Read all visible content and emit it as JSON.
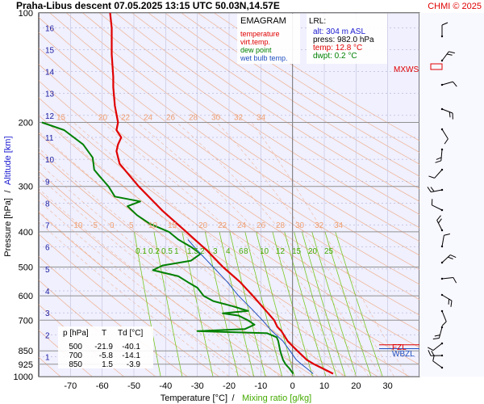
{
  "header": {
    "title": "Praha-Libus   descent   07.05.2025 13:15 UTC   50.03N,14.57E",
    "copyright": "CHMI © 2025"
  },
  "axes": {
    "x_label_temp": "Temperature [°C]",
    "x_label_sep": "/",
    "x_label_mix": "Mixing ratio [g/kg]",
    "y_label_pressure": "Pressure [hPa]",
    "y_label_sep": "/",
    "y_label_alt": "Altitude [km]"
  },
  "legend": {
    "title": "EMAGRAM",
    "items": [
      {
        "label": "temperature",
        "color": "#e00000"
      },
      {
        "label": "virt.temp.",
        "color": "#e00000"
      },
      {
        "label": "dew point",
        "color": "#008000"
      },
      {
        "label": "wet bulb temp.",
        "color": "#2050c0"
      }
    ]
  },
  "station_box": {
    "title": "LRL:",
    "lines": [
      {
        "text": "alt: 304 m ASL",
        "color": "#1a1ad0"
      },
      {
        "text": "press: 982.0 hPa",
        "color": "#000000"
      },
      {
        "text": "temp: 12.8 °C",
        "color": "#e00000"
      },
      {
        "text": "dwpt: 0.2 °C",
        "color": "#008000"
      }
    ]
  },
  "level_table": {
    "header": [
      "p [hPa]",
      "T",
      "Td [°C]"
    ],
    "rows": [
      [
        "500",
        "-21.9",
        "-40.1"
      ],
      [
        "700",
        "-5.8",
        "-14.1"
      ],
      [
        "850",
        "1.5",
        "-3.9"
      ]
    ]
  },
  "markers": {
    "mxws": "MXWS",
    "fzl": "FZL",
    "wbzl": "WBZL"
  },
  "colors": {
    "temperature": "#e00000",
    "dewpoint": "#008000",
    "wetbulb": "#2050c0",
    "isotherm": "#f0a070",
    "mixing_ratio": "#7ac820",
    "plot_bg": "#f0f0ff"
  },
  "chart_data": {
    "type": "line",
    "x_axis": "temperature_C",
    "y_axis": "pressure_hPa",
    "y_scale": "log",
    "xlim": [
      -80,
      40
    ],
    "ylim": [
      1000,
      100
    ],
    "x_ticks": [
      -70,
      -60,
      -50,
      -40,
      -30,
      -20,
      -10,
      0,
      10,
      20,
      30
    ],
    "y_ticks": [
      100,
      200,
      300,
      400,
      500,
      600,
      700,
      850,
      925,
      1000
    ],
    "altitude_km_labels": [
      1,
      2,
      3,
      4,
      5,
      6,
      7,
      8,
      9,
      10,
      11,
      12,
      13,
      14,
      15,
      16
    ],
    "isotherm_labels_upper": [
      15,
      20,
      22,
      24,
      26,
      28,
      30,
      32,
      34
    ],
    "isotherm_labels_lower": [
      -10,
      -5,
      0,
      5,
      10,
      15,
      20,
      22,
      24,
      26,
      28,
      30,
      32,
      34
    ],
    "mixing_ratio_labels": [
      "0.1",
      "0.2",
      "0.5",
      "1",
      "1.5",
      "2",
      "3",
      "4",
      "6",
      "8",
      "10",
      "12",
      "15",
      "20",
      "25"
    ],
    "series": [
      {
        "name": "temperature",
        "points": [
          [
            982,
            12.8
          ],
          [
            950,
            9.5
          ],
          [
            925,
            6.8
          ],
          [
            900,
            4.5
          ],
          [
            850,
            1.5
          ],
          [
            800,
            -1.5
          ],
          [
            750,
            -3.5
          ],
          [
            730,
            -4.8
          ],
          [
            700,
            -5.8
          ],
          [
            650,
            -9.0
          ],
          [
            600,
            -12.5
          ],
          [
            550,
            -16.5
          ],
          [
            500,
            -21.9
          ],
          [
            450,
            -27.0
          ],
          [
            400,
            -33.5
          ],
          [
            350,
            -41.0
          ],
          [
            300,
            -48.5
          ],
          [
            260,
            -54.5
          ],
          [
            240,
            -55.5
          ],
          [
            230,
            -55.0
          ],
          [
            220,
            -54.0
          ],
          [
            210,
            -55.5
          ],
          [
            200,
            -55.0
          ],
          [
            180,
            -56.0
          ],
          [
            160,
            -56.5
          ],
          [
            150,
            -56.5
          ],
          [
            130,
            -57.0
          ],
          [
            110,
            -57.0
          ],
          [
            100,
            -57.5
          ]
        ]
      },
      {
        "name": "dew point",
        "points": [
          [
            982,
            0.2
          ],
          [
            950,
            -1.0
          ],
          [
            925,
            -2.2
          ],
          [
            900,
            -3.0
          ],
          [
            850,
            -3.9
          ],
          [
            800,
            -4.5
          ],
          [
            780,
            -5.0
          ],
          [
            760,
            -8.0
          ],
          [
            750,
            -30.0
          ],
          [
            740,
            -15.0
          ],
          [
            720,
            -12.0
          ],
          [
            700,
            -14.1
          ],
          [
            680,
            -17.0
          ],
          [
            670,
            -22.0
          ],
          [
            660,
            -14.0
          ],
          [
            640,
            -19.0
          ],
          [
            620,
            -25.0
          ],
          [
            600,
            -28.0
          ],
          [
            570,
            -30.0
          ],
          [
            550,
            -33.0
          ],
          [
            530,
            -36.0
          ],
          [
            510,
            -44.0
          ],
          [
            495,
            -41.0
          ],
          [
            480,
            -32.0
          ],
          [
            460,
            -29.0
          ],
          [
            440,
            -32.0
          ],
          [
            420,
            -36.0
          ],
          [
            400,
            -39.0
          ],
          [
            380,
            -45.0
          ],
          [
            360,
            -49.0
          ],
          [
            340,
            -52.0
          ],
          [
            330,
            -48.0
          ],
          [
            320,
            -56.0
          ],
          [
            300,
            -58.0
          ],
          [
            280,
            -61.0
          ],
          [
            270,
            -62.5
          ],
          [
            250,
            -63.0
          ],
          [
            230,
            -66.0
          ],
          [
            210,
            -72.0
          ],
          [
            200,
            -79.0
          ]
        ]
      },
      {
        "name": "wet bulb temp.",
        "points": [
          [
            982,
            6.5
          ],
          [
            950,
            4.5
          ],
          [
            925,
            2.8
          ],
          [
            900,
            1.2
          ],
          [
            850,
            -0.8
          ],
          [
            800,
            -3.0
          ],
          [
            750,
            -6.5
          ],
          [
            700,
            -9.5
          ],
          [
            650,
            -13.0
          ],
          [
            600,
            -17.0
          ],
          [
            550,
            -20.5
          ],
          [
            500,
            -25.0
          ],
          [
            450,
            -30.0
          ],
          [
            420,
            -33.0
          ]
        ]
      }
    ]
  }
}
